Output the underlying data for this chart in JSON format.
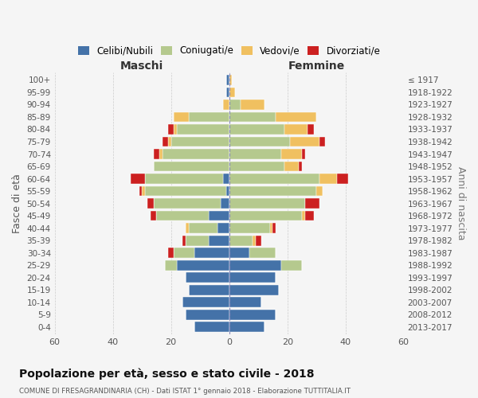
{
  "age_groups": [
    "0-4",
    "5-9",
    "10-14",
    "15-19",
    "20-24",
    "25-29",
    "30-34",
    "35-39",
    "40-44",
    "45-49",
    "50-54",
    "55-59",
    "60-64",
    "65-69",
    "70-74",
    "75-79",
    "80-84",
    "85-89",
    "90-94",
    "95-99",
    "100+"
  ],
  "birth_years": [
    "2013-2017",
    "2008-2012",
    "2003-2007",
    "1998-2002",
    "1993-1997",
    "1988-1992",
    "1983-1987",
    "1978-1982",
    "1973-1977",
    "1968-1972",
    "1963-1967",
    "1958-1962",
    "1953-1957",
    "1948-1952",
    "1943-1947",
    "1938-1942",
    "1933-1937",
    "1928-1932",
    "1923-1927",
    "1918-1922",
    "≤ 1917"
  ],
  "colors": {
    "celibi": "#4472a8",
    "coniugati": "#b5c98e",
    "vedovi": "#f0c060",
    "divorziati": "#cc2020"
  },
  "legend_colors_order": [
    "Celibi/Nubili",
    "Coniugati/e",
    "Vedovi/e",
    "Divorziati/e"
  ],
  "legend_colors": {
    "Celibi/Nubili": "#4472a8",
    "Coniugati/e": "#b5c98e",
    "Vedovi/e": "#f0c060",
    "Divorziati/e": "#cc2020"
  },
  "maschi": {
    "celibi": [
      12,
      15,
      16,
      14,
      15,
      18,
      12,
      7,
      4,
      7,
      3,
      1,
      2,
      0,
      0,
      0,
      0,
      0,
      0,
      1,
      1
    ],
    "coniugati": [
      0,
      0,
      0,
      0,
      0,
      4,
      7,
      8,
      10,
      18,
      23,
      28,
      27,
      26,
      23,
      20,
      18,
      14,
      0,
      0,
      0
    ],
    "vedovi": [
      0,
      0,
      0,
      0,
      0,
      0,
      0,
      0,
      1,
      0,
      0,
      1,
      0,
      0,
      1,
      1,
      1,
      5,
      2,
      0,
      0
    ],
    "divorziati": [
      0,
      0,
      0,
      0,
      0,
      0,
      2,
      1,
      0,
      2,
      2,
      1,
      5,
      0,
      2,
      2,
      2,
      0,
      0,
      0,
      0
    ]
  },
  "femmine": {
    "nubili": [
      12,
      16,
      11,
      17,
      16,
      18,
      7,
      0,
      0,
      0,
      0,
      0,
      0,
      0,
      0,
      0,
      0,
      0,
      0,
      0,
      0
    ],
    "coniugate": [
      0,
      0,
      0,
      0,
      0,
      7,
      9,
      8,
      14,
      25,
      26,
      30,
      31,
      19,
      18,
      21,
      19,
      16,
      4,
      0,
      0
    ],
    "vedove": [
      0,
      0,
      0,
      0,
      0,
      0,
      0,
      1,
      1,
      1,
      0,
      2,
      6,
      5,
      7,
      10,
      8,
      14,
      8,
      2,
      1
    ],
    "divorziate": [
      0,
      0,
      0,
      0,
      0,
      0,
      0,
      2,
      1,
      3,
      5,
      0,
      4,
      1,
      1,
      2,
      2,
      0,
      0,
      0,
      0
    ]
  },
  "xlim": 60,
  "title": "Popolazione per età, sesso e stato civile - 2018",
  "subtitle": "COMUNE DI FRESAGRANDINARIA (CH) - Dati ISTAT 1° gennaio 2018 - Elaborazione TUTTITALIA.IT",
  "xlabel_left": "Maschi",
  "xlabel_right": "Femmine",
  "ylabel_left": "Fasce di età",
  "ylabel_right": "Anni di nascita",
  "bg_color": "#f5f5f5",
  "bar_height": 0.82,
  "grid_color": "#cccccc"
}
